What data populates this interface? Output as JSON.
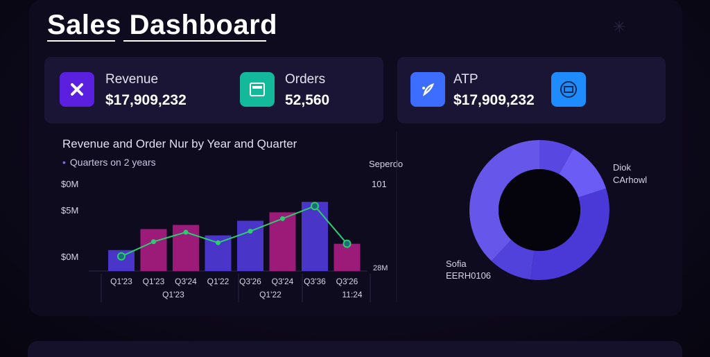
{
  "header": {
    "title": "Sales Dashboard"
  },
  "kpis": [
    {
      "label": "Revenue",
      "value": "$17,909,232",
      "icon": "x-icon",
      "color": "#5b1fe0"
    },
    {
      "label": "Orders",
      "value": "52,560",
      "icon": "document-icon",
      "color": "#14b89a"
    },
    {
      "label": "ATP",
      "value": "$17,909,232",
      "icon": "feather-icon",
      "color": "#3d6dff"
    },
    {
      "label": "",
      "value": "",
      "icon": "box-icon",
      "color": "#1e8bff"
    }
  ],
  "chart": {
    "title": "Revenue and Order Nur by Year and Quarter",
    "subtitle": "Quarters on 2 years",
    "y_left_ticks": [
      "$0M",
      "$5M",
      "$0M"
    ],
    "right_label": "Seperdo",
    "right_value": "101",
    "right_bottom": "28M",
    "x_groups": [
      "Q1'23",
      "Q1'22",
      "11:24"
    ]
  },
  "chart_data": {
    "type": "bar",
    "title": "Revenue and Order Nur by Year and Quarter",
    "categories": [
      "Q1'23",
      "Q1'23",
      "Q3'24",
      "Q1'22",
      "Q3'26",
      "Q3'24",
      "Q3'36",
      "Q3'26"
    ],
    "series": [
      {
        "values": [
          1.0,
          2.0,
          2.2,
          1.7,
          2.4,
          2.8,
          3.3,
          1.3
        ],
        "colors": [
          "#4a35c9",
          "#9c1a78",
          "#9c1a78",
          "#4a35c9",
          "#4a35c9",
          "#9c1a78",
          "#4a35c9",
          "#9c1a78"
        ]
      },
      {
        "type": "line",
        "values": [
          0.7,
          1.4,
          1.85,
          1.35,
          1.9,
          2.5,
          3.1,
          1.3
        ],
        "color": "#2ecc71"
      }
    ],
    "ylim": [
      0,
      4
    ]
  },
  "donut": {
    "labels": [
      {
        "line1": "Diok",
        "line2": "CArhowl"
      },
      {
        "line1": "Sofia",
        "line2": "EERH0106"
      }
    ],
    "segments": [
      {
        "value": 0.08,
        "color": "#5847e0"
      },
      {
        "value": 0.12,
        "color": "#6a5cf5"
      },
      {
        "value": 0.32,
        "color": "#4a39d6"
      },
      {
        "value": 0.1,
        "color": "#5142dc"
      },
      {
        "value": 0.38,
        "color": "#6656ea"
      }
    ]
  }
}
